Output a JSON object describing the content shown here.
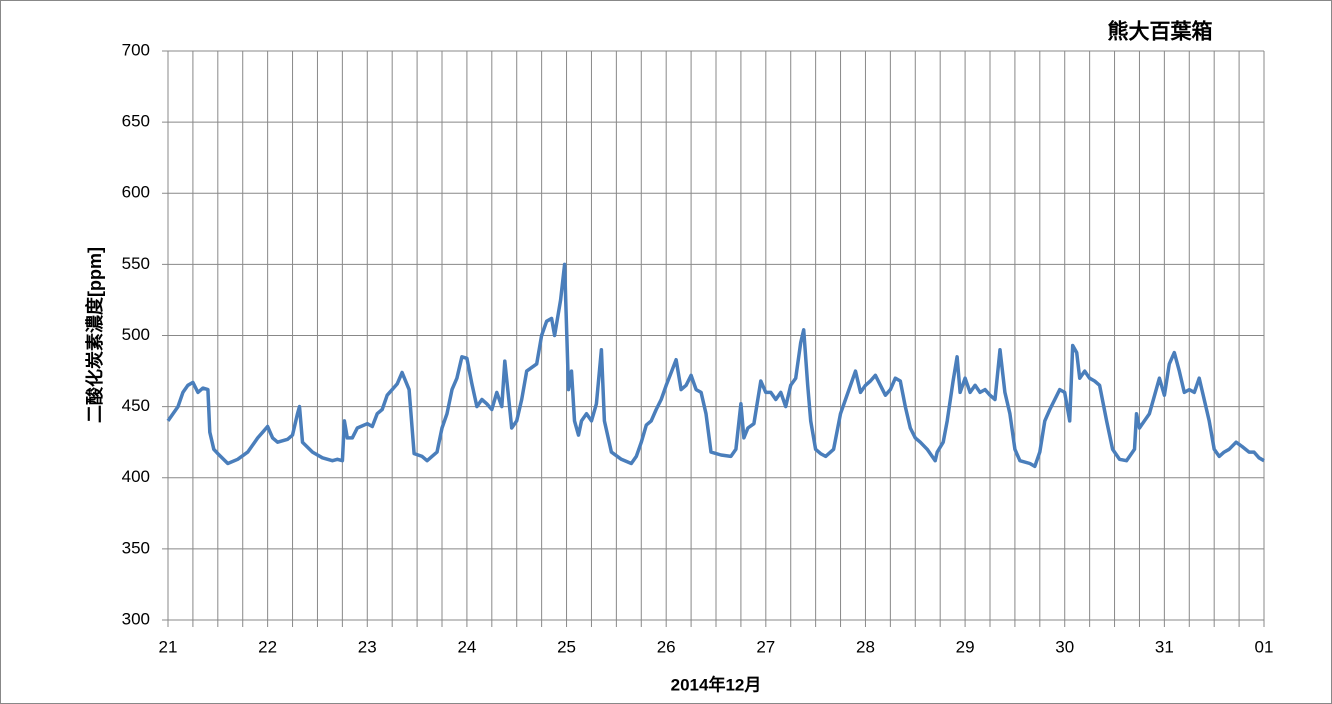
{
  "chart_data": {
    "type": "line",
    "title": "熊大百葉箱",
    "y_label": "二酸化炭素濃度[ppm]",
    "x_label": "2014年12月",
    "ylim": [
      300,
      700
    ],
    "yticks": [
      300,
      350,
      400,
      450,
      500,
      550,
      600,
      650,
      700
    ],
    "xlim": [
      21,
      32
    ],
    "xticks": [
      21,
      22,
      23,
      24,
      25,
      26,
      27,
      28,
      29,
      30,
      31,
      {
        "value": 32,
        "label": "01"
      }
    ],
    "grid": true,
    "minor_per_major": 4,
    "series": [
      {
        "color": "#4a7ebb",
        "x": [
          21.0,
          21.05,
          21.1,
          21.15,
          21.2,
          21.25,
          21.3,
          21.35,
          21.4,
          21.42,
          21.46,
          21.5,
          21.6,
          21.7,
          21.8,
          21.9,
          21.95,
          22.0,
          22.05,
          22.1,
          22.2,
          22.25,
          22.3,
          22.32,
          22.35,
          22.45,
          22.55,
          22.65,
          22.7,
          22.75,
          22.77,
          22.8,
          22.85,
          22.9,
          23.0,
          23.05,
          23.1,
          23.15,
          23.2,
          23.25,
          23.3,
          23.35,
          23.42,
          23.47,
          23.55,
          23.6,
          23.7,
          23.75,
          23.8,
          23.85,
          23.9,
          23.95,
          24.0,
          24.05,
          24.1,
          24.15,
          24.2,
          24.25,
          24.3,
          24.35,
          24.38,
          24.42,
          24.45,
          24.5,
          24.55,
          24.6,
          24.7,
          24.75,
          24.8,
          24.85,
          24.88,
          24.94,
          24.98,
          25.02,
          25.05,
          25.08,
          25.12,
          25.15,
          25.2,
          25.25,
          25.3,
          25.35,
          25.38,
          25.45,
          25.55,
          25.65,
          25.7,
          25.75,
          25.8,
          25.85,
          25.9,
          25.95,
          26.0,
          26.05,
          26.1,
          26.15,
          26.2,
          26.25,
          26.3,
          26.35,
          26.4,
          26.45,
          26.55,
          26.65,
          26.7,
          26.75,
          26.78,
          26.82,
          26.88,
          26.95,
          27.0,
          27.05,
          27.1,
          27.15,
          27.2,
          27.25,
          27.3,
          27.35,
          27.38,
          27.42,
          27.45,
          27.5,
          27.55,
          27.6,
          27.68,
          27.75,
          27.8,
          27.85,
          27.9,
          27.95,
          28.0,
          28.05,
          28.1,
          28.15,
          28.2,
          28.25,
          28.3,
          28.35,
          28.4,
          28.45,
          28.5,
          28.55,
          28.62,
          28.7,
          28.72,
          28.78,
          28.82,
          28.88,
          28.92,
          28.95,
          29.0,
          29.05,
          29.1,
          29.15,
          29.2,
          29.25,
          29.3,
          29.35,
          29.4,
          29.45,
          29.5,
          29.55,
          29.65,
          29.7,
          29.75,
          29.8,
          29.85,
          29.9,
          29.95,
          30.0,
          30.05,
          30.08,
          30.12,
          30.15,
          30.2,
          30.25,
          30.3,
          30.35,
          30.42,
          30.48,
          30.55,
          30.62,
          30.7,
          30.72,
          30.75,
          30.8,
          30.85,
          30.95,
          31.0,
          31.05,
          31.1,
          31.15,
          31.2,
          31.25,
          31.3,
          31.35,
          31.4,
          31.45,
          31.5,
          31.55,
          31.6,
          31.65,
          31.72,
          31.78,
          31.85,
          31.9,
          31.95,
          32.0
        ],
        "values": [
          440,
          445,
          450,
          460,
          465,
          467,
          460,
          463,
          462,
          432,
          420,
          417,
          410,
          413,
          418,
          428,
          432,
          436,
          428,
          425,
          427,
          430,
          445,
          450,
          425,
          418,
          414,
          412,
          413,
          412,
          440,
          428,
          428,
          435,
          438,
          436,
          445,
          448,
          458,
          462,
          466,
          474,
          462,
          417,
          415,
          412,
          418,
          435,
          445,
          462,
          470,
          485,
          484,
          466,
          450,
          455,
          452,
          448,
          460,
          450,
          482,
          455,
          435,
          440,
          455,
          475,
          480,
          500,
          510,
          512,
          500,
          525,
          550,
          462,
          475,
          440,
          430,
          440,
          445,
          440,
          452,
          490,
          440,
          418,
          413,
          410,
          415,
          425,
          437,
          440,
          448,
          455,
          465,
          474,
          483,
          462,
          465,
          472,
          462,
          460,
          445,
          418,
          416,
          415,
          420,
          452,
          428,
          435,
          438,
          468,
          460,
          460,
          455,
          460,
          450,
          465,
          470,
          495,
          504,
          465,
          440,
          420,
          417,
          415,
          420,
          445,
          455,
          465,
          475,
          460,
          465,
          468,
          472,
          465,
          458,
          462,
          470,
          468,
          450,
          435,
          428,
          425,
          420,
          412,
          418,
          425,
          440,
          468,
          485,
          460,
          470,
          460,
          465,
          460,
          462,
          458,
          455,
          490,
          460,
          445,
          420,
          412,
          410,
          408,
          418,
          440,
          448,
          455,
          462,
          460,
          440,
          493,
          488,
          470,
          475,
          470,
          468,
          465,
          440,
          420,
          413,
          412,
          420,
          445,
          435,
          440,
          445,
          470,
          458,
          480,
          488,
          475,
          460,
          462,
          460,
          470,
          455,
          440,
          420,
          415,
          418,
          420,
          425,
          422,
          418,
          418,
          414,
          412
        ]
      }
    ]
  }
}
